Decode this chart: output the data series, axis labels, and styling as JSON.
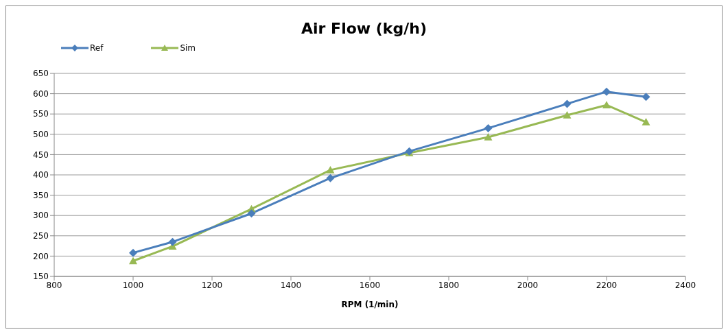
{
  "chart_data": {
    "type": "line",
    "title": "Air Flow (kg/h)",
    "xlabel": "RPM (1/min)",
    "x": [
      1000,
      1100,
      1300,
      1500,
      1700,
      1900,
      2100,
      2200,
      2300
    ],
    "series": [
      {
        "name": "Ref",
        "color": "#4a7ebb",
        "marker": "diamond",
        "values": [
          208,
          235,
          305,
          392,
          458,
          515,
          575,
          605,
          592
        ]
      },
      {
        "name": "Sim",
        "color": "#98b954",
        "marker": "triangle",
        "values": [
          188,
          224,
          316,
          412,
          454,
          493,
          547,
          572,
          530
        ]
      }
    ],
    "xlim": [
      800,
      2400
    ],
    "xticks": [
      800,
      1000,
      1200,
      1400,
      1600,
      1800,
      2000,
      2200,
      2400
    ],
    "ylim": [
      150,
      650
    ],
    "yticks": [
      150,
      200,
      250,
      300,
      350,
      400,
      450,
      500,
      550,
      600,
      650
    ],
    "grid": "y",
    "legend": "top left",
    "line_style": "solid"
  }
}
